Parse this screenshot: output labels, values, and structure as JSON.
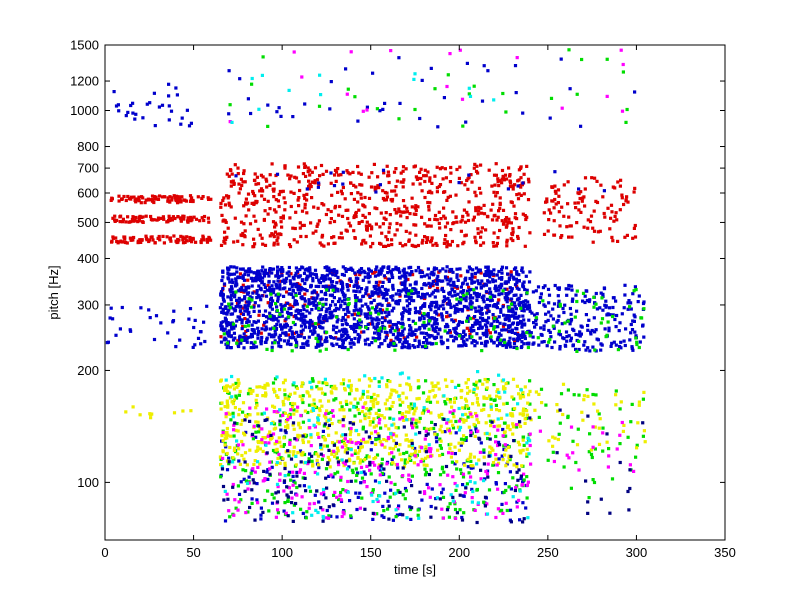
{
  "chart_data": {
    "type": "scatter",
    "title": "",
    "xlabel": "time [s]",
    "ylabel": "pitch [Hz]",
    "xlim": [
      0,
      350
    ],
    "ylim": [
      70,
      1500
    ],
    "y_scale": "log",
    "grid": false,
    "legend": "none",
    "x_ticks": [
      0,
      50,
      100,
      150,
      200,
      250,
      300,
      350
    ],
    "y_ticks": [
      100,
      200,
      300,
      400,
      500,
      600,
      700,
      800,
      1000,
      1200,
      1500
    ],
    "colors": [
      "#dd0000",
      "#0000cc",
      "#00dd00",
      "#eeee00",
      "#ff00ff",
      "#00eeee",
      "#000080"
    ],
    "series": [
      {
        "color": "#dd0000",
        "clusters": [
          {
            "x": [
              3,
              60
            ],
            "y": [
              565,
              590
            ],
            "n": 80
          },
          {
            "x": [
              3,
              60
            ],
            "y": [
              500,
              520
            ],
            "n": 80
          },
          {
            "x": [
              3,
              60
            ],
            "y": [
              440,
              460
            ],
            "n": 80
          },
          {
            "x": [
              65,
              240
            ],
            "y": [
              430,
              720
            ],
            "n": 700
          },
          {
            "x": [
              248,
              300
            ],
            "y": [
              440,
              660
            ],
            "n": 110
          },
          {
            "x": [
              65,
              235
            ],
            "y": [
              240,
              370
            ],
            "n": 160
          }
        ]
      },
      {
        "color": "#0000cc",
        "clusters": [
          {
            "x": [
              65,
              240
            ],
            "y": [
              230,
              380
            ],
            "n": 1900
          },
          {
            "x": [
              240,
              305
            ],
            "y": [
              225,
              340
            ],
            "n": 220
          },
          {
            "x": [
              0,
              60
            ],
            "y": [
              230,
              300
            ],
            "n": 35
          },
          {
            "x": [
              5,
              50
            ],
            "y": [
              900,
              1180
            ],
            "n": 30
          },
          {
            "x": [
              65,
              300
            ],
            "y": [
              900,
              1400
            ],
            "n": 40
          },
          {
            "x": [
              65,
              305
            ],
            "y": [
              600,
              710
            ],
            "n": 20
          },
          {
            "x": [
              65,
              240
            ],
            "y": [
              78,
              140
            ],
            "n": 160
          }
        ]
      },
      {
        "color": "#00dd00",
        "clusters": [
          {
            "x": [
              65,
              240
            ],
            "y": [
              80,
              190
            ],
            "n": 380
          },
          {
            "x": [
              245,
              305
            ],
            "y": [
              90,
              180
            ],
            "n": 45
          },
          {
            "x": [
              65,
              305
            ],
            "y": [
              225,
              330
            ],
            "n": 140
          },
          {
            "x": [
              65,
              300
            ],
            "y": [
              900,
              1500
            ],
            "n": 25
          }
        ]
      },
      {
        "color": "#eeee00",
        "clusters": [
          {
            "x": [
              65,
              240
            ],
            "y": [
              110,
              190
            ],
            "n": 650
          },
          {
            "x": [
              240,
              305
            ],
            "y": [
              120,
              185
            ],
            "n": 40
          },
          {
            "x": [
              5,
              50
            ],
            "y": [
              145,
              160
            ],
            "n": 10
          }
        ]
      },
      {
        "color": "#ff00ff",
        "clusters": [
          {
            "x": [
              65,
              240
            ],
            "y": [
              80,
              160
            ],
            "n": 220
          },
          {
            "x": [
              240,
              300
            ],
            "y": [
              95,
              150
            ],
            "n": 20
          },
          {
            "x": [
              65,
              300
            ],
            "y": [
              900,
              1500
            ],
            "n": 18
          }
        ]
      },
      {
        "color": "#00eeee",
        "clusters": [
          {
            "x": [
              65,
              240
            ],
            "y": [
              80,
              200
            ],
            "n": 120
          },
          {
            "x": [
              65,
              300
            ],
            "y": [
              900,
              1400
            ],
            "n": 12
          }
        ]
      },
      {
        "color": "#000080",
        "clusters": [
          {
            "x": [
              65,
              240
            ],
            "y": [
              78,
              150
            ],
            "n": 140
          },
          {
            "x": [
              240,
              305
            ],
            "y": [
              80,
              160
            ],
            "n": 15
          }
        ]
      }
    ]
  }
}
